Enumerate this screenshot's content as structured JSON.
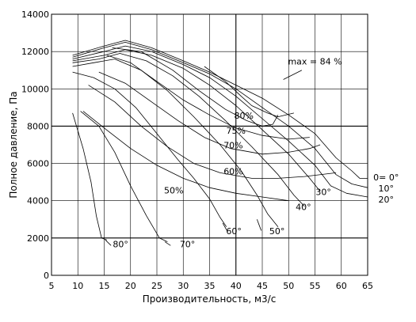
{
  "chart_data": {
    "type": "line",
    "title": "",
    "xlabel": "Производительность, м3/с",
    "ylabel": "Полное давление, Па",
    "xlim": [
      5,
      65
    ],
    "ylim": [
      0,
      14000
    ],
    "x_ticks": [
      "5",
      "10",
      "15",
      "20",
      "25",
      "30",
      "35",
      "40",
      "45",
      "50",
      "55",
      "60",
      "65"
    ],
    "y_ticks": [
      "0",
      "2000",
      "4000",
      "6000",
      "8000",
      "10000",
      "12000",
      "14000"
    ],
    "grid": {
      "x": true,
      "y": true
    },
    "annotations": [
      {
        "text": "max = 84 %",
        "x": 55,
        "y": 11300
      },
      {
        "text": "80%",
        "x": 41.5,
        "y": 8400
      },
      {
        "text": "75%",
        "x": 40,
        "y": 7600
      },
      {
        "text": "70%",
        "x": 39.5,
        "y": 6800
      },
      {
        "text": "60%",
        "x": 39.5,
        "y": 5400
      },
      {
        "text": "50%",
        "x": 28.2,
        "y": 4400
      },
      {
        "text": "0= 0°",
        "x": 68.5,
        "y": 5100
      },
      {
        "text": "10°",
        "x": 68.5,
        "y": 4500
      },
      {
        "text": "20°",
        "x": 68.5,
        "y": 3900
      },
      {
        "text": "30°",
        "x": 56.6,
        "y": 4300
      },
      {
        "text": "40°",
        "x": 52.8,
        "y": 3500
      },
      {
        "text": "50°",
        "x": 47.8,
        "y": 2200
      },
      {
        "text": "60°",
        "x": 39.6,
        "y": 2200
      },
      {
        "text": "70°",
        "x": 30.8,
        "y": 1500
      },
      {
        "text": "80°",
        "x": 18.1,
        "y": 1500
      }
    ],
    "series": [
      {
        "values": [
          [
            9,
            11800
          ],
          [
            15,
            12300
          ],
          [
            19,
            12600
          ],
          [
            24,
            12200
          ],
          [
            30,
            11500
          ],
          [
            35,
            10900
          ],
          [
            40,
            10200
          ],
          [
            45,
            9500
          ],
          [
            50,
            8600
          ],
          [
            55,
            7600
          ],
          [
            59,
            6300
          ],
          [
            62,
            5600
          ],
          [
            63.5,
            5200
          ],
          [
            65,
            5200
          ]
        ]
      },
      {
        "values": [
          [
            9,
            11700
          ],
          [
            15,
            12200
          ],
          [
            19,
            12500
          ],
          [
            24,
            12100
          ],
          [
            30,
            11400
          ],
          [
            35,
            10800
          ],
          [
            40,
            10000
          ],
          [
            45,
            9000
          ],
          [
            50,
            8000
          ],
          [
            55,
            6800
          ],
          [
            59,
            5400
          ],
          [
            62,
            4900
          ],
          [
            65,
            4700
          ]
        ]
      },
      {
        "values": [
          [
            9,
            11600
          ],
          [
            15,
            12000
          ],
          [
            19,
            12300
          ],
          [
            24,
            12000
          ],
          [
            30,
            11300
          ],
          [
            35,
            10600
          ],
          [
            40,
            9600
          ],
          [
            45,
            8400
          ],
          [
            50,
            7200
          ],
          [
            55,
            5900
          ],
          [
            58,
            4800
          ],
          [
            61,
            4400
          ],
          [
            65,
            4200
          ]
        ]
      },
      {
        "values": [
          [
            9,
            11500
          ],
          [
            15,
            11800
          ],
          [
            19,
            12100
          ],
          [
            24,
            11800
          ],
          [
            30,
            11100
          ],
          [
            35,
            10200
          ],
          [
            40,
            9100
          ],
          [
            45,
            7800
          ],
          [
            50,
            6500
          ],
          [
            54,
            5200
          ],
          [
            56,
            4500
          ]
        ]
      },
      {
        "values": [
          [
            9,
            11400
          ],
          [
            14,
            11600
          ],
          [
            18,
            11900
          ],
          [
            23,
            11500
          ],
          [
            28,
            10700
          ],
          [
            33,
            9600
          ],
          [
            38,
            8300
          ],
          [
            43,
            6900
          ],
          [
            48,
            5400
          ],
          [
            51,
            4300
          ],
          [
            53,
            3700
          ]
        ]
      },
      {
        "values": [
          [
            9,
            11200
          ],
          [
            13,
            11400
          ],
          [
            17,
            11600
          ],
          [
            22,
            11000
          ],
          [
            27,
            9900
          ],
          [
            32,
            8500
          ],
          [
            37,
            7000
          ],
          [
            41,
            5600
          ],
          [
            44,
            4300
          ],
          [
            46,
            3300
          ],
          [
            48,
            2600
          ]
        ]
      },
      {
        "values": [
          [
            9,
            10900
          ],
          [
            13,
            10600
          ],
          [
            17,
            10000
          ],
          [
            21,
            9000
          ],
          [
            25,
            7600
          ],
          [
            29,
            6200
          ],
          [
            32,
            5200
          ],
          [
            35,
            4100
          ],
          [
            37,
            3100
          ],
          [
            38.2,
            2600
          ]
        ]
      },
      {
        "values": [
          [
            10.5,
            8800
          ],
          [
            14,
            8000
          ],
          [
            17,
            6600
          ],
          [
            20,
            4800
          ],
          [
            23,
            3200
          ],
          [
            25.5,
            2000
          ],
          [
            27,
            1800
          ]
        ]
      },
      {
        "values": [
          [
            9,
            8700
          ],
          [
            11,
            6800
          ],
          [
            12.5,
            5000
          ],
          [
            13.5,
            3200
          ],
          [
            14.5,
            2000
          ],
          [
            15.5,
            1900
          ]
        ]
      },
      {
        "values": [
          [
            16.5,
            12200
          ],
          [
            22,
            12000
          ],
          [
            28,
            11000
          ],
          [
            33,
            9900
          ],
          [
            38,
            8900
          ],
          [
            42,
            8300
          ],
          [
            45,
            8000
          ],
          [
            47,
            8100
          ],
          [
            48,
            8600
          ]
        ]
      },
      {
        "values": [
          [
            15.5,
            11800
          ],
          [
            20,
            11400
          ],
          [
            25,
            10400
          ],
          [
            30,
            9400
          ],
          [
            35,
            8600
          ],
          [
            40,
            7900
          ],
          [
            45,
            7500
          ],
          [
            50,
            7300
          ],
          [
            54,
            7400
          ]
        ]
      },
      {
        "values": [
          [
            14,
            10900
          ],
          [
            19,
            10300
          ],
          [
            24,
            9300
          ],
          [
            29,
            8300
          ],
          [
            34,
            7400
          ],
          [
            39,
            6800
          ],
          [
            45,
            6500
          ],
          [
            50,
            6600
          ],
          [
            54,
            6800
          ],
          [
            56,
            7000
          ]
        ]
      },
      {
        "values": [
          [
            12,
            10200
          ],
          [
            17,
            9300
          ],
          [
            22,
            8000
          ],
          [
            27,
            6900
          ],
          [
            32,
            6000
          ],
          [
            37,
            5500
          ],
          [
            43,
            5200
          ],
          [
            48,
            5200
          ],
          [
            53,
            5300
          ],
          [
            59,
            5500
          ]
        ]
      },
      {
        "values": [
          [
            11,
            8800
          ],
          [
            15,
            7900
          ],
          [
            20,
            6800
          ],
          [
            25,
            5900
          ],
          [
            30,
            5200
          ],
          [
            35,
            4700
          ],
          [
            40,
            4400
          ],
          [
            45,
            4200
          ],
          [
            50,
            4000
          ]
        ]
      },
      {
        "values": [
          [
            34,
            11200
          ],
          [
            38,
            10400
          ],
          [
            41,
            9600
          ],
          [
            43,
            9100
          ],
          [
            46,
            8700
          ],
          [
            48,
            8500
          ],
          [
            51,
            8700
          ]
        ]
      }
    ]
  }
}
